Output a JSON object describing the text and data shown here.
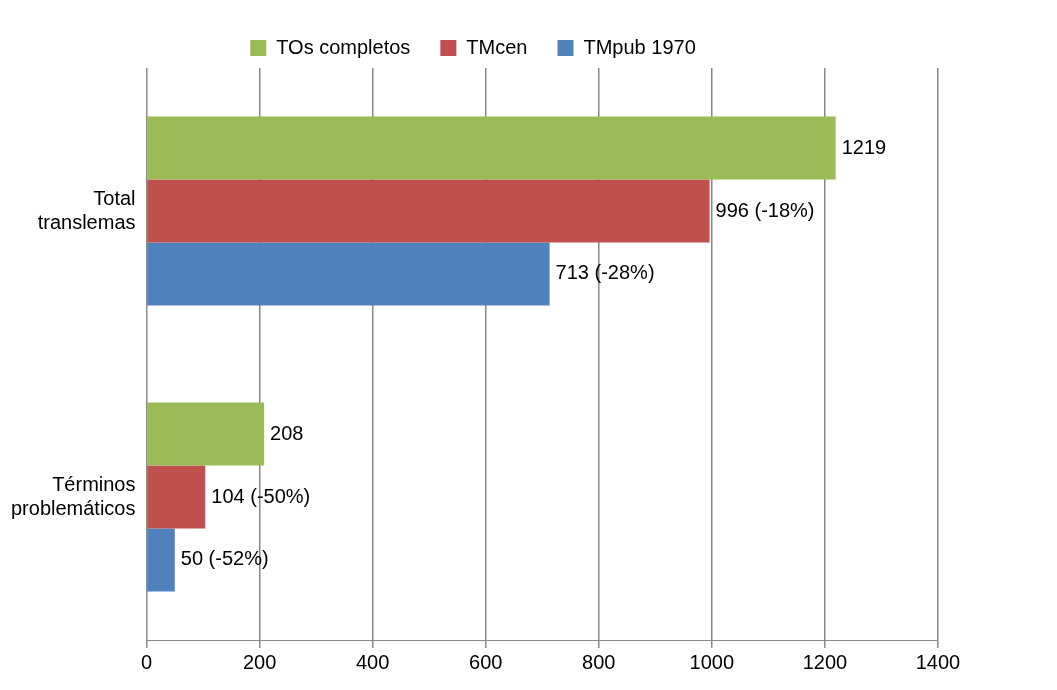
{
  "chart_data": {
    "type": "bar",
    "orientation": "horizontal",
    "categories": [
      "Total translemas",
      "Términos problemáticos"
    ],
    "series": [
      {
        "name": "TOs completos",
        "color": "#9bbb59",
        "values": [
          1219,
          208
        ],
        "value_labels": [
          "1219",
          "208"
        ]
      },
      {
        "name": "TMcen",
        "color": "#c0504d",
        "values": [
          996,
          104
        ],
        "value_labels": [
          "996 (-18%)",
          "104 (-50%)"
        ]
      },
      {
        "name": "TMpub 1970",
        "color": "#4f81bd",
        "values": [
          713,
          50
        ],
        "value_labels": [
          "713 (-28%)",
          "50 (-52%)"
        ]
      }
    ],
    "xlim": [
      0,
      1400
    ],
    "xticks": [
      0,
      200,
      400,
      600,
      800,
      1000,
      1200,
      1400
    ],
    "grid": "x",
    "legend": "top"
  }
}
